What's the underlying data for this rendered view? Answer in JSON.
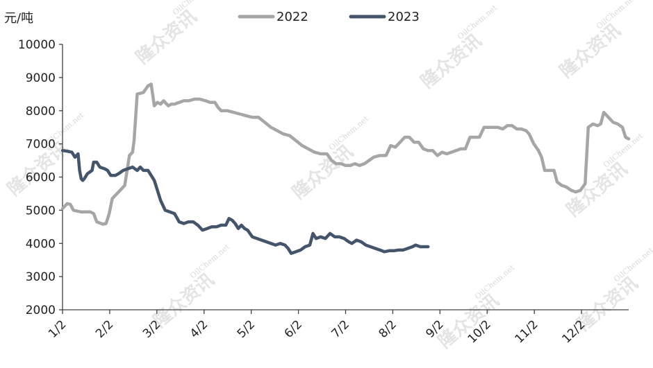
{
  "chart_data": {
    "type": "line",
    "unit_label": "元/吨",
    "ylim": [
      2000,
      10000
    ],
    "y_ticks": [
      "10000",
      "9000",
      "8000",
      "7000",
      "6000",
      "5000",
      "4000",
      "3000",
      "2000"
    ],
    "x_ticks": [
      "1/2",
      "2/2",
      "3/2",
      "4/2",
      "5/2",
      "6/2",
      "7/2",
      "8/2",
      "9/2",
      "10/2",
      "11/2",
      "12/2"
    ],
    "legend_position": "top",
    "grid": false,
    "watermark": {
      "text": "隆众资讯",
      "sub": "OilChem.net"
    },
    "series": [
      {
        "name": "2022",
        "color": "#a6a6a6",
        "points": [
          [
            0,
            5050
          ],
          [
            3,
            5200
          ],
          [
            5,
            5180
          ],
          [
            7,
            5000
          ],
          [
            12,
            4950
          ],
          [
            18,
            4950
          ],
          [
            20,
            4900
          ],
          [
            22,
            4650
          ],
          [
            26,
            4580
          ],
          [
            28,
            4600
          ],
          [
            30,
            4900
          ],
          [
            32,
            5350
          ],
          [
            35,
            5500
          ],
          [
            38,
            5650
          ],
          [
            40,
            5750
          ],
          [
            43,
            6650
          ],
          [
            45,
            6750
          ],
          [
            46,
            7100
          ],
          [
            48,
            8500
          ],
          [
            52,
            8550
          ],
          [
            55,
            8750
          ],
          [
            57,
            8800
          ],
          [
            59,
            8150
          ],
          [
            61,
            8250
          ],
          [
            63,
            8200
          ],
          [
            65,
            8300
          ],
          [
            68,
            8150
          ],
          [
            70,
            8200
          ],
          [
            72,
            8200
          ],
          [
            75,
            8250
          ],
          [
            78,
            8300
          ],
          [
            81,
            8300
          ],
          [
            85,
            8350
          ],
          [
            88,
            8350
          ],
          [
            92,
            8300
          ],
          [
            95,
            8250
          ],
          [
            98,
            8250
          ],
          [
            100,
            8100
          ],
          [
            102,
            8000
          ],
          [
            106,
            8000
          ],
          [
            110,
            7950
          ],
          [
            114,
            7900
          ],
          [
            118,
            7850
          ],
          [
            122,
            7800
          ],
          [
            126,
            7800
          ],
          [
            130,
            7650
          ],
          [
            134,
            7500
          ],
          [
            138,
            7400
          ],
          [
            142,
            7300
          ],
          [
            146,
            7250
          ],
          [
            150,
            7100
          ],
          [
            154,
            6950
          ],
          [
            158,
            6850
          ],
          [
            162,
            6750
          ],
          [
            166,
            6700
          ],
          [
            170,
            6700
          ],
          [
            173,
            6500
          ],
          [
            176,
            6400
          ],
          [
            179,
            6400
          ],
          [
            182,
            6350
          ],
          [
            185,
            6350
          ],
          [
            188,
            6400
          ],
          [
            191,
            6350
          ],
          [
            194,
            6400
          ],
          [
            197,
            6500
          ],
          [
            200,
            6600
          ],
          [
            204,
            6650
          ],
          [
            208,
            6650
          ],
          [
            211,
            6950
          ],
          [
            214,
            6900
          ],
          [
            217,
            7050
          ],
          [
            220,
            7200
          ],
          [
            223,
            7200
          ],
          [
            226,
            7050
          ],
          [
            229,
            7050
          ],
          [
            232,
            6850
          ],
          [
            235,
            6800
          ],
          [
            238,
            6800
          ],
          [
            241,
            6650
          ],
          [
            244,
            6750
          ],
          [
            247,
            6700
          ],
          [
            250,
            6750
          ],
          [
            253,
            6800
          ],
          [
            256,
            6850
          ],
          [
            259,
            6850
          ],
          [
            262,
            7200
          ],
          [
            265,
            7200
          ],
          [
            268,
            7200
          ],
          [
            271,
            7500
          ],
          [
            274,
            7500
          ],
          [
            277,
            7500
          ],
          [
            280,
            7500
          ],
          [
            283,
            7450
          ],
          [
            286,
            7550
          ],
          [
            289,
            7550
          ],
          [
            292,
            7450
          ],
          [
            295,
            7450
          ],
          [
            298,
            7400
          ],
          [
            300,
            7300
          ],
          [
            303,
            7000
          ],
          [
            306,
            6800
          ],
          [
            308,
            6600
          ],
          [
            310,
            6200
          ],
          [
            313,
            6200
          ],
          [
            316,
            6200
          ],
          [
            318,
            5850
          ],
          [
            321,
            5750
          ],
          [
            324,
            5700
          ],
          [
            327,
            5600
          ],
          [
            330,
            5550
          ],
          [
            333,
            5600
          ],
          [
            336,
            5800
          ],
          [
            338,
            7500
          ],
          [
            341,
            7600
          ],
          [
            344,
            7550
          ],
          [
            346,
            7600
          ],
          [
            348,
            7950
          ],
          [
            351,
            7800
          ],
          [
            354,
            7650
          ],
          [
            357,
            7600
          ],
          [
            360,
            7500
          ],
          [
            362,
            7200
          ],
          [
            364,
            7150
          ]
        ]
      },
      {
        "name": "2023",
        "color": "#44546a",
        "points": [
          [
            0,
            6800
          ],
          [
            3,
            6780
          ],
          [
            6,
            6750
          ],
          [
            8,
            6600
          ],
          [
            10,
            6700
          ],
          [
            11,
            6200
          ],
          [
            12,
            5950
          ],
          [
            13,
            5900
          ],
          [
            14,
            5950
          ],
          [
            16,
            6100
          ],
          [
            19,
            6200
          ],
          [
            20,
            6450
          ],
          [
            22,
            6450
          ],
          [
            24,
            6300
          ],
          [
            27,
            6250
          ],
          [
            29,
            6200
          ],
          [
            31,
            6050
          ],
          [
            34,
            6050
          ],
          [
            36,
            6100
          ],
          [
            39,
            6200
          ],
          [
            42,
            6250
          ],
          [
            45,
            6300
          ],
          [
            48,
            6200
          ],
          [
            50,
            6300
          ],
          [
            52,
            6200
          ],
          [
            55,
            6200
          ],
          [
            57,
            6050
          ],
          [
            59,
            5900
          ],
          [
            61,
            5600
          ],
          [
            63,
            5300
          ],
          [
            66,
            5000
          ],
          [
            69,
            4950
          ],
          [
            72,
            4900
          ],
          [
            75,
            4650
          ],
          [
            78,
            4600
          ],
          [
            81,
            4650
          ],
          [
            84,
            4650
          ],
          [
            87,
            4550
          ],
          [
            90,
            4400
          ],
          [
            93,
            4450
          ],
          [
            96,
            4500
          ],
          [
            99,
            4500
          ],
          [
            102,
            4550
          ],
          [
            105,
            4550
          ],
          [
            107,
            4750
          ],
          [
            109,
            4700
          ],
          [
            111,
            4600
          ],
          [
            113,
            4450
          ],
          [
            115,
            4550
          ],
          [
            117,
            4450
          ],
          [
            119,
            4400
          ],
          [
            122,
            4200
          ],
          [
            125,
            4150
          ],
          [
            128,
            4100
          ],
          [
            131,
            4050
          ],
          [
            134,
            4000
          ],
          [
            137,
            3950
          ],
          [
            140,
            4000
          ],
          [
            143,
            3950
          ],
          [
            145,
            3850
          ],
          [
            147,
            3700
          ],
          [
            150,
            3750
          ],
          [
            153,
            3800
          ],
          [
            156,
            3900
          ],
          [
            159,
            3950
          ],
          [
            161,
            4300
          ],
          [
            163,
            4150
          ],
          [
            166,
            4200
          ],
          [
            169,
            4150
          ],
          [
            172,
            4300
          ],
          [
            175,
            4200
          ],
          [
            178,
            4200
          ],
          [
            181,
            4150
          ],
          [
            184,
            4050
          ],
          [
            186,
            4000
          ],
          [
            189,
            4100
          ],
          [
            192,
            4050
          ],
          [
            195,
            3950
          ],
          [
            198,
            3900
          ],
          [
            201,
            3850
          ],
          [
            204,
            3800
          ],
          [
            207,
            3750
          ],
          [
            210,
            3780
          ],
          [
            213,
            3780
          ],
          [
            216,
            3800
          ],
          [
            219,
            3800
          ],
          [
            222,
            3850
          ],
          [
            225,
            3900
          ],
          [
            227,
            3950
          ],
          [
            230,
            3900
          ],
          [
            233,
            3900
          ],
          [
            235,
            3900
          ]
        ]
      }
    ]
  }
}
